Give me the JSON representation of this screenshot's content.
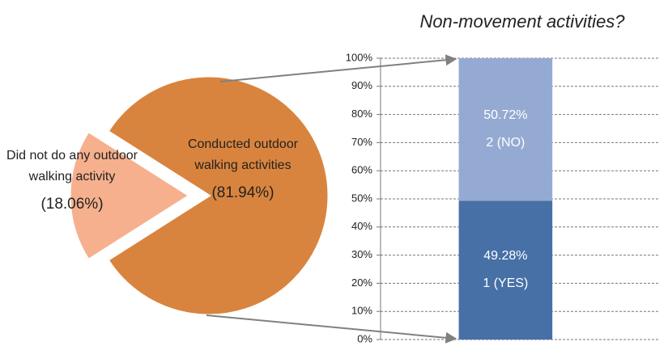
{
  "chart_data": [
    {
      "type": "pie",
      "labels": [
        "Conducted outdoor walking activities",
        "Did not do any outdoor walking activity"
      ],
      "values": [
        81.94,
        18.06
      ],
      "value_labels": [
        "(81.94%)",
        "(18.06%)"
      ],
      "colors": [
        "#d9843e",
        "#f6b08d"
      ]
    },
    {
      "type": "bar",
      "title": "Non-movement activities?",
      "categories": [
        null
      ],
      "stacked": true,
      "series": [
        {
          "name": "1 (YES)",
          "color": "#4670a6",
          "values": [
            49.28
          ],
          "value_labels": [
            "49.28%"
          ]
        },
        {
          "name": "2 (NO)",
          "color": "#95aad2",
          "values": [
            50.72
          ],
          "value_labels": [
            "50.72%"
          ]
        }
      ],
      "ylim": [
        0,
        100
      ],
      "yticks": [
        {
          "value": 0,
          "label": "0%"
        },
        {
          "value": 10,
          "label": "10%"
        },
        {
          "value": 20,
          "label": "20%"
        },
        {
          "value": 30,
          "label": "30%"
        },
        {
          "value": 40,
          "label": "40%"
        },
        {
          "value": 50,
          "label": "50%"
        },
        {
          "value": 60,
          "label": "60%"
        },
        {
          "value": 70,
          "label": "70%"
        },
        {
          "value": 80,
          "label": "80%"
        },
        {
          "value": 90,
          "label": "90%"
        },
        {
          "value": 100,
          "label": "100%"
        }
      ],
      "grid": true
    }
  ]
}
